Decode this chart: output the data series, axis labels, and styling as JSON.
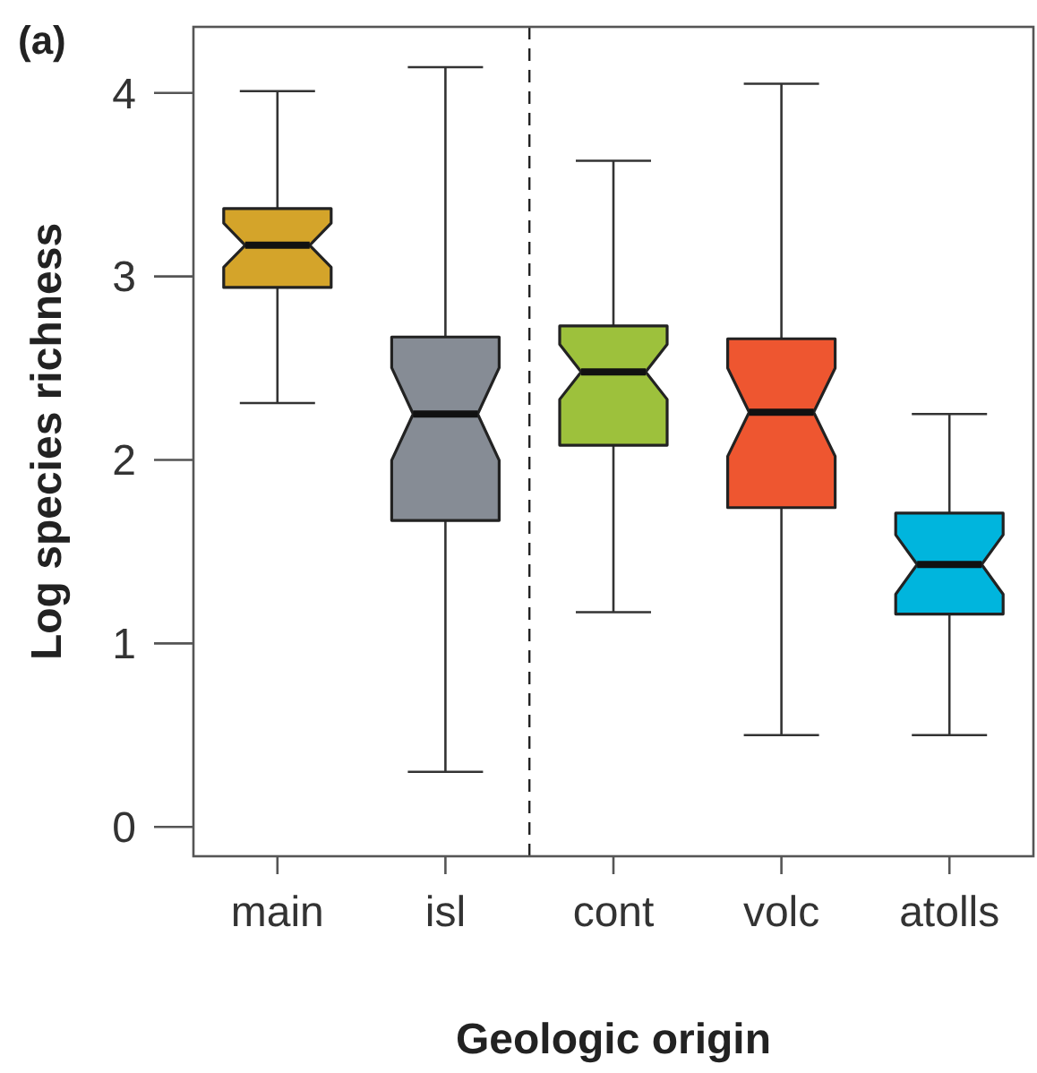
{
  "chart_data": {
    "type": "box",
    "title": "(a)",
    "xlabel": "Geologic origin",
    "ylabel": "Log species richness",
    "categories": [
      "main",
      "isl",
      "cont",
      "volc",
      "atolls"
    ],
    "colors": [
      "#d4a42a",
      "#868c95",
      "#9dc13c",
      "#ee5630",
      "#00b5dd"
    ],
    "boxes": [
      {
        "low": 2.31,
        "q1": 2.94,
        "median": 3.17,
        "q3": 3.37,
        "high": 4.01
      },
      {
        "low": 0.3,
        "q1": 1.67,
        "median": 2.25,
        "q3": 2.67,
        "high": 4.14
      },
      {
        "low": 1.17,
        "q1": 2.08,
        "median": 2.48,
        "q3": 2.73,
        "high": 3.63
      },
      {
        "low": 0.5,
        "q1": 1.74,
        "median": 2.26,
        "q3": 2.66,
        "high": 4.05
      },
      {
        "low": 0.5,
        "q1": 1.16,
        "median": 1.43,
        "q3": 1.71,
        "high": 2.25
      }
    ],
    "ylim": [
      -0.16,
      4.36
    ],
    "yticks": [
      0,
      1,
      2,
      3,
      4
    ]
  }
}
